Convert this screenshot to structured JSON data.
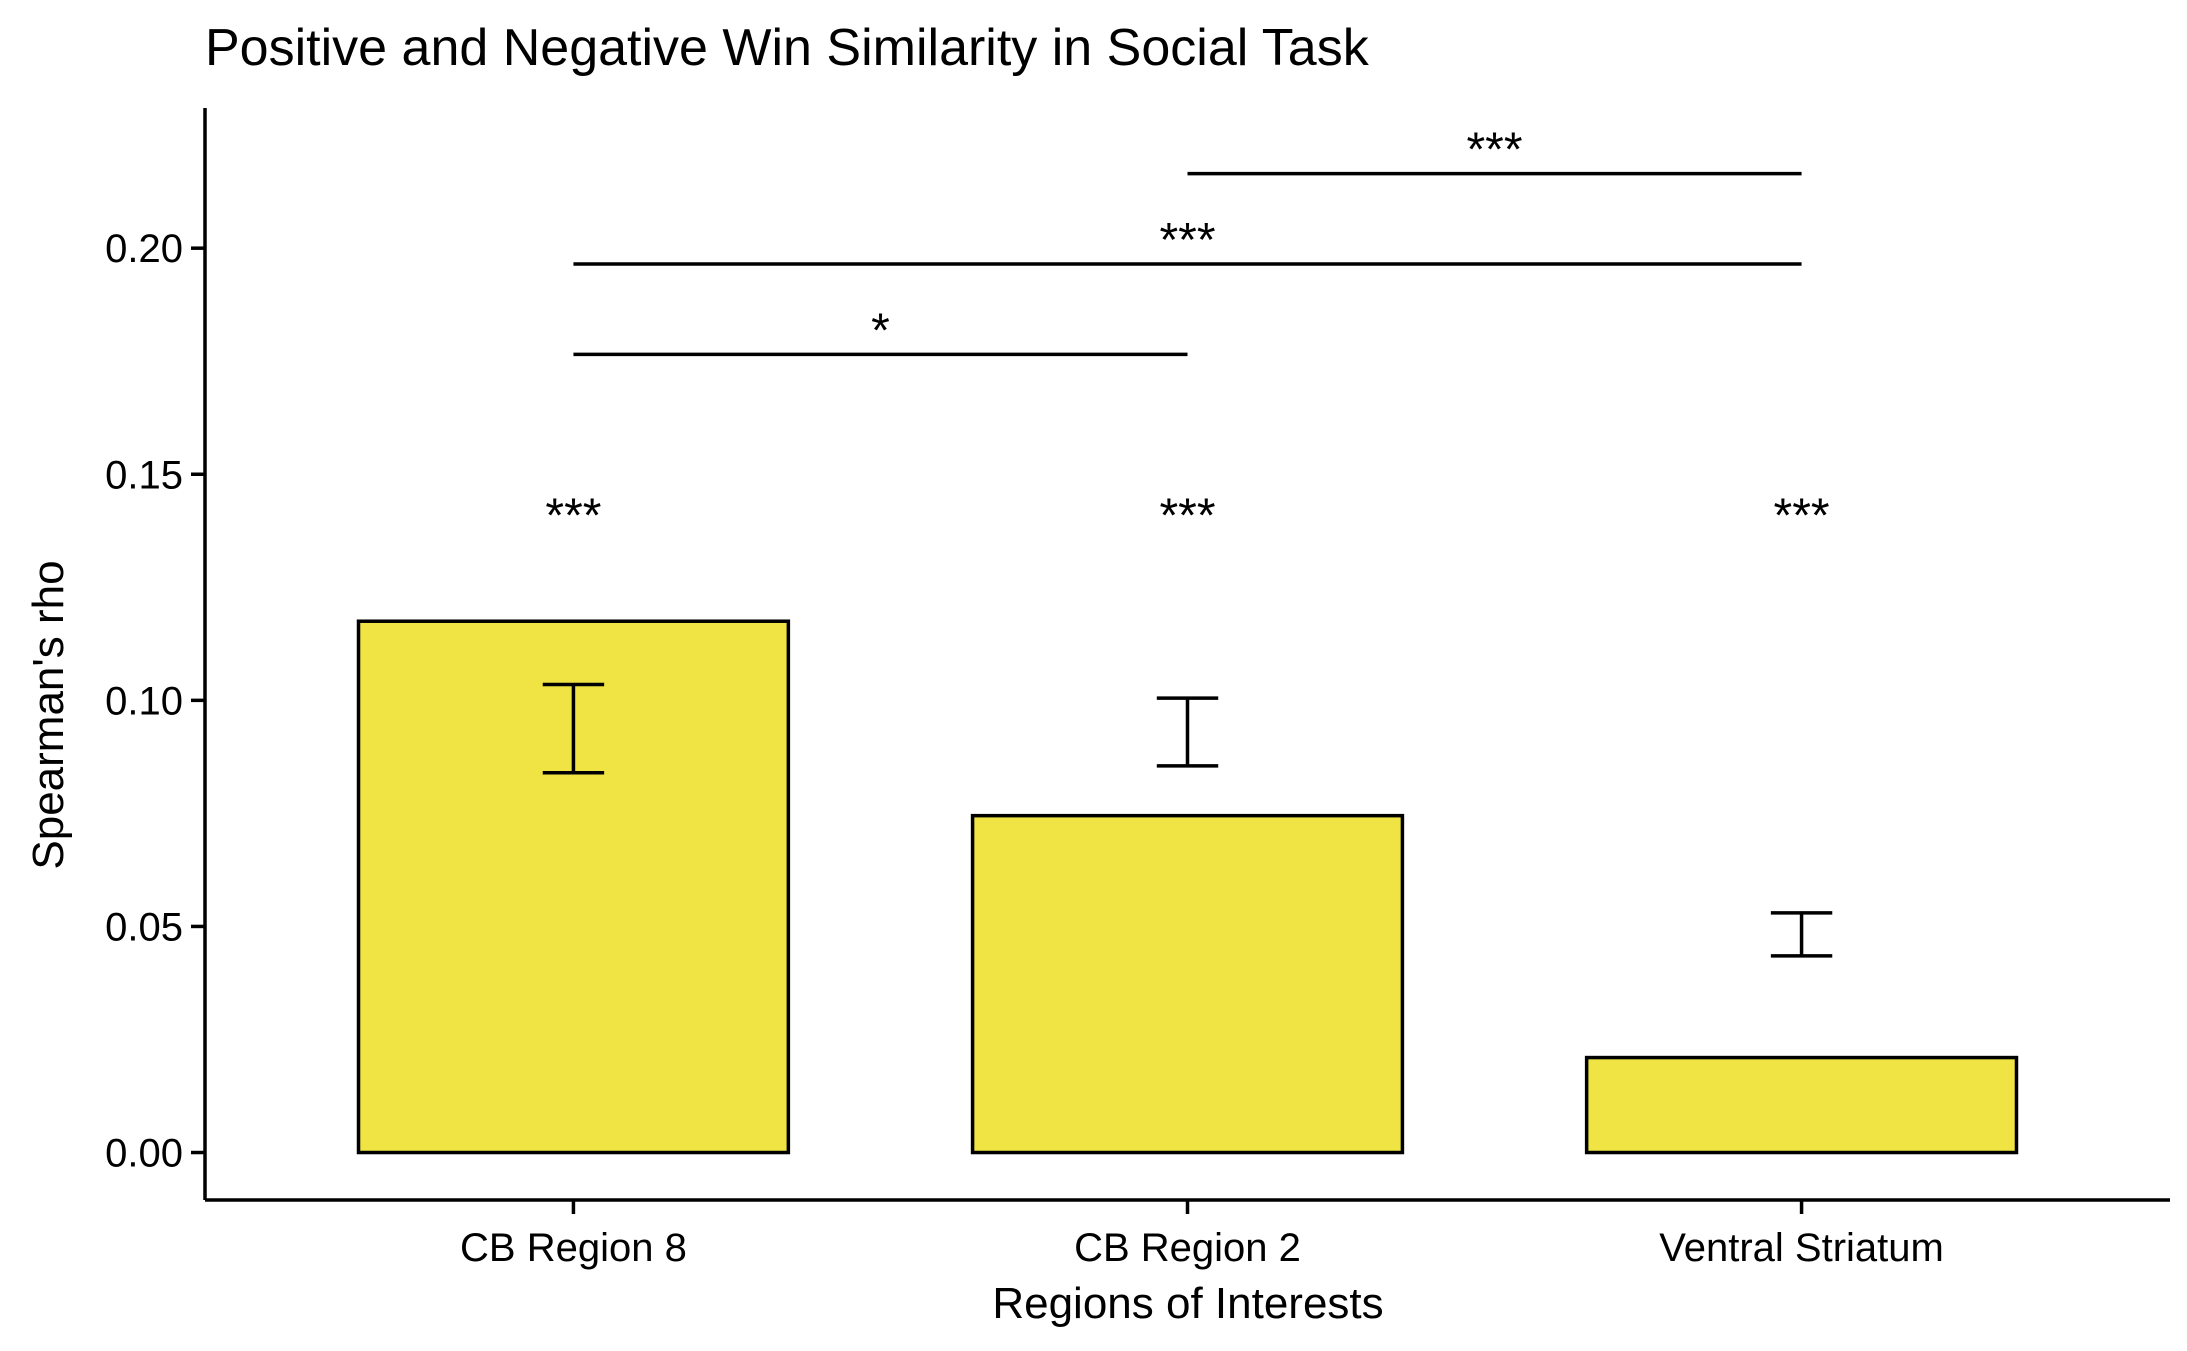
{
  "chart_data": {
    "type": "bar",
    "title": "Positive and Negative Win Similarity in Social Task",
    "xlabel": "Regions of Interests",
    "ylabel": "Spearman's rho",
    "categories": [
      "CB Region 8",
      "CB Region 2",
      "Ventral Striatum"
    ],
    "values": [
      0.1175,
      0.0745,
      0.021
    ],
    "error_bars": [
      {
        "low": 0.084,
        "high": 0.1035
      },
      {
        "low": 0.0855,
        "high": 0.1005
      },
      {
        "low": 0.0435,
        "high": 0.053
      }
    ],
    "bar_labels": [
      "***",
      "***",
      "***"
    ],
    "bar_label_y": 0.1435,
    "comparisons": [
      {
        "from": 0,
        "to": 1,
        "y": 0.1765,
        "label": "*"
      },
      {
        "from": 0,
        "to": 2,
        "y": 0.1965,
        "label": "***"
      },
      {
        "from": 1,
        "to": 2,
        "y": 0.2165,
        "label": "***"
      }
    ],
    "yticks": [
      0.0,
      0.05,
      0.1,
      0.15,
      0.2
    ],
    "ytick_labels": [
      "0.00",
      "0.05",
      "0.10",
      "0.15",
      "0.20"
    ],
    "ylim": [
      -0.0105,
      0.231
    ],
    "grid": false,
    "legend": "none",
    "colors": {
      "bar_fill": "#EFE443",
      "bar_stroke": "#000000",
      "axis": "#000000"
    }
  }
}
